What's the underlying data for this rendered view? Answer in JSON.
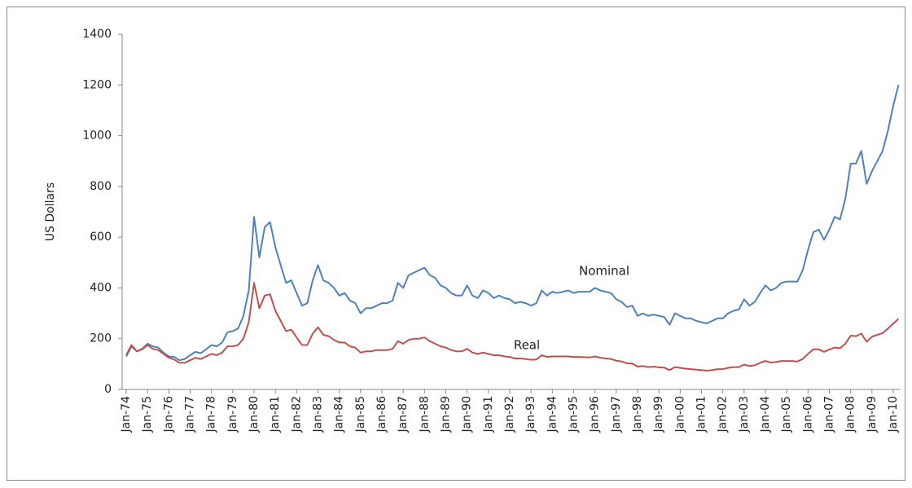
{
  "chart_data": {
    "type": "line",
    "ylabel": "US Dollars",
    "categories": [
      "Jan-74",
      null,
      null,
      null,
      "Jan-75",
      null,
      null,
      null,
      "Jan-76",
      null,
      null,
      null,
      "Jan-77",
      null,
      null,
      null,
      "Jan-78",
      null,
      null,
      null,
      "Jan-79",
      null,
      null,
      null,
      "Jan-80",
      null,
      null,
      null,
      "Jan-81",
      null,
      null,
      null,
      "Jan-82",
      null,
      null,
      null,
      "Jan-83",
      null,
      null,
      null,
      "Jan-84",
      null,
      null,
      null,
      "Jan-85",
      null,
      null,
      null,
      "Jan-86",
      null,
      null,
      null,
      "Jan-87",
      null,
      null,
      null,
      "Jan-88",
      null,
      null,
      null,
      "Jan-89",
      null,
      null,
      null,
      "Jan-90",
      null,
      null,
      null,
      "Jan-91",
      null,
      null,
      null,
      "Jan-92",
      null,
      null,
      null,
      "Jan-93",
      null,
      null,
      null,
      "Jan-94",
      null,
      null,
      null,
      "Jan-95",
      null,
      null,
      null,
      "Jan-96",
      null,
      null,
      null,
      "Jan-97",
      null,
      null,
      null,
      "Jan-98",
      null,
      null,
      null,
      "Jan-99",
      null,
      null,
      null,
      "Jan-00",
      null,
      null,
      null,
      "Jan-01",
      null,
      null,
      null,
      "Jan-02",
      null,
      null,
      null,
      "Jan-03",
      null,
      null,
      null,
      "Jan-04",
      null,
      null,
      null,
      "Jan-05",
      null,
      null,
      null,
      "Jan-06",
      null,
      null,
      null,
      "Jan-07",
      null,
      null,
      null,
      "Jan-08",
      null,
      null,
      null,
      "Jan-09",
      null,
      null,
      null,
      "Jan-10",
      null
    ],
    "series": [
      {
        "name": "Nominal",
        "color": "#4f81bd",
        "values": [
          130,
          170,
          150,
          160,
          180,
          170,
          165,
          145,
          130,
          128,
          115,
          120,
          135,
          148,
          143,
          158,
          175,
          170,
          185,
          225,
          230,
          240,
          290,
          390,
          680,
          520,
          640,
          660,
          560,
          490,
          420,
          430,
          380,
          330,
          340,
          430,
          490,
          430,
          420,
          400,
          370,
          380,
          350,
          340,
          300,
          320,
          320,
          330,
          340,
          340,
          350,
          420,
          400,
          450,
          460,
          470,
          480,
          450,
          440,
          410,
          400,
          380,
          370,
          370,
          410,
          370,
          360,
          390,
          380,
          360,
          370,
          360,
          355,
          340,
          345,
          340,
          330,
          340,
          390,
          370,
          385,
          380,
          385,
          390,
          380,
          385,
          385,
          385,
          400,
          390,
          385,
          380,
          355,
          345,
          325,
          330,
          290,
          300,
          290,
          295,
          290,
          285,
          255,
          300,
          290,
          280,
          280,
          270,
          265,
          260,
          270,
          280,
          280,
          300,
          310,
          315,
          355,
          330,
          345,
          380,
          410,
          390,
          400,
          420,
          425,
          425,
          425,
          470,
          550,
          620,
          630,
          590,
          630,
          680,
          670,
          750,
          890,
          890,
          940,
          810,
          860,
          900,
          940,
          1020,
          1120,
          1200
        ]
      },
      {
        "name": "Real",
        "color": "#c0504d",
        "values": [
          135,
          175,
          150,
          158,
          175,
          160,
          155,
          140,
          125,
          118,
          105,
          105,
          115,
          125,
          120,
          130,
          140,
          135,
          145,
          170,
          170,
          175,
          200,
          265,
          420,
          320,
          370,
          375,
          310,
          270,
          230,
          235,
          205,
          175,
          175,
          220,
          245,
          215,
          210,
          195,
          185,
          185,
          170,
          165,
          145,
          150,
          150,
          155,
          155,
          155,
          160,
          190,
          180,
          195,
          200,
          200,
          205,
          190,
          180,
          170,
          165,
          155,
          150,
          150,
          160,
          145,
          140,
          145,
          140,
          135,
          135,
          130,
          128,
          122,
          122,
          120,
          117,
          118,
          135,
          128,
          130,
          130,
          130,
          130,
          128,
          128,
          127,
          126,
          130,
          125,
          122,
          120,
          113,
          110,
          103,
          102,
          90,
          92,
          88,
          90,
          87,
          86,
          76,
          88,
          85,
          82,
          80,
          78,
          76,
          74,
          76,
          80,
          80,
          85,
          88,
          88,
          98,
          92,
          95,
          105,
          112,
          106,
          108,
          112,
          112,
          112,
          110,
          120,
          140,
          158,
          158,
          148,
          157,
          165,
          162,
          180,
          212,
          210,
          220,
          188,
          208,
          215,
          222,
          240,
          260,
          278
        ]
      }
    ],
    "ylim": [
      0,
      1400
    ],
    "yticks": [
      0,
      200,
      400,
      600,
      800,
      1000,
      1200,
      1400
    ],
    "grid": false
  }
}
